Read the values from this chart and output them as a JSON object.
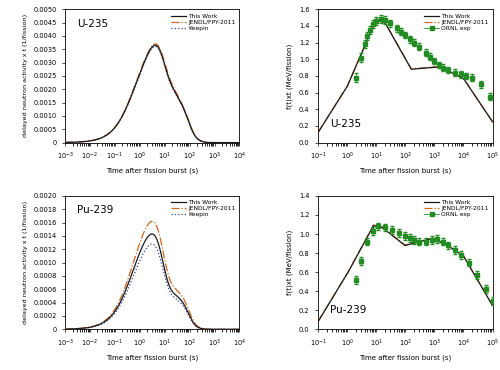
{
  "fig_width": 5.0,
  "fig_height": 3.7,
  "dpi": 100,
  "colors": {
    "this_work": "#1a1a1a",
    "jendl": "#cc6622",
    "keepin": "#334499",
    "ornl": "#228B22"
  },
  "u235_dn": {
    "label": "U-235",
    "ylabel": "delayed neutron activity x t (1/fission)",
    "xlabel": "Time after fission burst (s)",
    "xlim": [
      0.001,
      10000.0
    ],
    "ylim": [
      0,
      0.005
    ],
    "yticks": [
      0,
      0.0005,
      0.001,
      0.0015,
      0.002,
      0.0025,
      0.003,
      0.0035,
      0.004,
      0.0045,
      0.005
    ]
  },
  "u235_dh": {
    "label": "U-235",
    "ylabel": "f(t)xt (MeV/fission)",
    "xlabel": "Time after fission burst (s)",
    "xlim": [
      0.1,
      100000.0
    ],
    "ylim": [
      0,
      1.6
    ],
    "yticks": [
      0,
      0.2,
      0.4,
      0.6,
      0.8,
      1.0,
      1.2,
      1.4,
      1.6
    ]
  },
  "pu239_dn": {
    "label": "Pu-239",
    "ylabel": "delayed neutron activity x t (1/fission)",
    "xlabel": "Time after fission burst (s)",
    "xlim": [
      0.001,
      10000.0
    ],
    "ylim": [
      0,
      0.002
    ],
    "yticks": [
      0,
      0.0002,
      0.0004,
      0.0006,
      0.0008,
      0.001,
      0.0012,
      0.0014,
      0.0016,
      0.0018,
      0.002
    ]
  },
  "pu239_dh": {
    "label": "Pu-239",
    "ylabel": "f(t)xt (MeV/fission)",
    "xlabel": "Time after fission burst (s)",
    "xlim": [
      0.1,
      100000.0
    ],
    "ylim": [
      0,
      1.4
    ],
    "yticks": [
      0,
      0.2,
      0.4,
      0.6,
      0.8,
      1.0,
      1.2,
      1.4
    ]
  },
  "ornl_u235_t": [
    2,
    3,
    4,
    5,
    6,
    8,
    10,
    15,
    20,
    30,
    50,
    70,
    100,
    150,
    200,
    300,
    500,
    700,
    1000,
    1500,
    2000,
    3000,
    5000,
    8000,
    12000,
    20000,
    40000,
    80000
  ],
  "ornl_u235_v": [
    0.78,
    1.02,
    1.18,
    1.28,
    1.35,
    1.42,
    1.46,
    1.48,
    1.47,
    1.43,
    1.37,
    1.33,
    1.29,
    1.24,
    1.2,
    1.15,
    1.08,
    1.03,
    0.98,
    0.93,
    0.9,
    0.87,
    0.84,
    0.82,
    0.8,
    0.78,
    0.7,
    0.55
  ],
  "ornl_u235_e": [
    0.05,
    0.05,
    0.05,
    0.05,
    0.05,
    0.05,
    0.05,
    0.05,
    0.05,
    0.04,
    0.04,
    0.04,
    0.04,
    0.04,
    0.04,
    0.04,
    0.04,
    0.04,
    0.04,
    0.04,
    0.04,
    0.04,
    0.04,
    0.04,
    0.04,
    0.04,
    0.04,
    0.04
  ],
  "ornl_pu239_t": [
    2,
    3,
    5,
    8,
    12,
    20,
    35,
    60,
    100,
    150,
    200,
    300,
    500,
    800,
    1200,
    2000,
    3000,
    5000,
    8000,
    15000,
    30000,
    60000,
    100000
  ],
  "ornl_pu239_v": [
    0.52,
    0.72,
    0.92,
    1.03,
    1.08,
    1.07,
    1.04,
    1.01,
    0.98,
    0.96,
    0.94,
    0.92,
    0.92,
    0.94,
    0.95,
    0.92,
    0.88,
    0.83,
    0.78,
    0.7,
    0.57,
    0.42,
    0.3
  ],
  "ornl_pu239_e": [
    0.04,
    0.04,
    0.04,
    0.04,
    0.04,
    0.04,
    0.04,
    0.04,
    0.04,
    0.04,
    0.04,
    0.04,
    0.04,
    0.04,
    0.04,
    0.04,
    0.04,
    0.04,
    0.04,
    0.04,
    0.04,
    0.04,
    0.04
  ]
}
